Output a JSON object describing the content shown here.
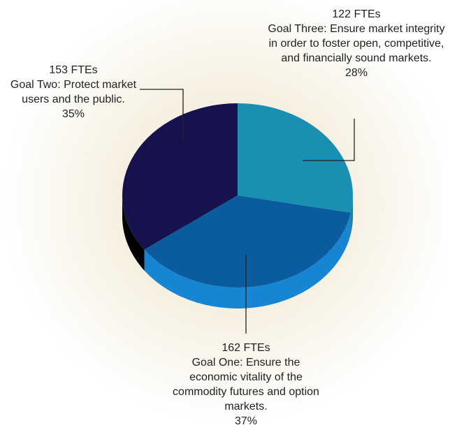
{
  "chart_data": {
    "type": "pie",
    "categories": [
      "Goal Three: Ensure market integrity in order to foster open, competitive, and financially sound markets.",
      "Goal One:  Ensure the economic vitality of the commodity futures and option markets.",
      "Goal Two:  Protect market users and the public."
    ],
    "values": [
      28,
      37,
      35
    ],
    "value_labels": [
      "28%",
      "37%",
      "35%"
    ],
    "count_labels": [
      "122 FTEs",
      "162 FTEs",
      "153 FTEs"
    ],
    "colors": [
      "#1a8fb2",
      "#0b5c9e",
      "#16124e"
    ]
  }
}
